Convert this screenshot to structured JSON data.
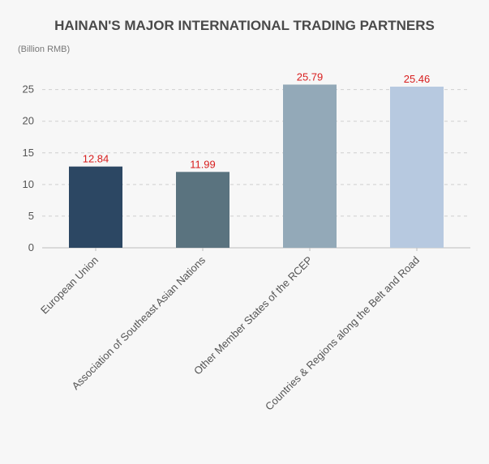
{
  "chart_data": {
    "type": "bar",
    "title": "HAINAN'S MAJOR INTERNATIONAL TRADING PARTNERS",
    "unit": "(Billion RMB)",
    "categories": [
      "European Union",
      "Association of Southeast Asian Nations",
      "Other Member States of the RCEP",
      "Countries & Regions along the Belt and Road"
    ],
    "values": [
      12.84,
      11.99,
      25.79,
      25.46
    ],
    "value_labels": [
      "12.84",
      "11.99",
      "25.79",
      "25.46"
    ],
    "bar_colors": [
      "#2c4763",
      "#5a737f",
      "#93a9b8",
      "#b7c9e0"
    ],
    "label_color": "#d81e1e",
    "ylim": [
      0,
      27
    ],
    "yticks": [
      0,
      5,
      10,
      15,
      20,
      25
    ],
    "grid": true
  }
}
